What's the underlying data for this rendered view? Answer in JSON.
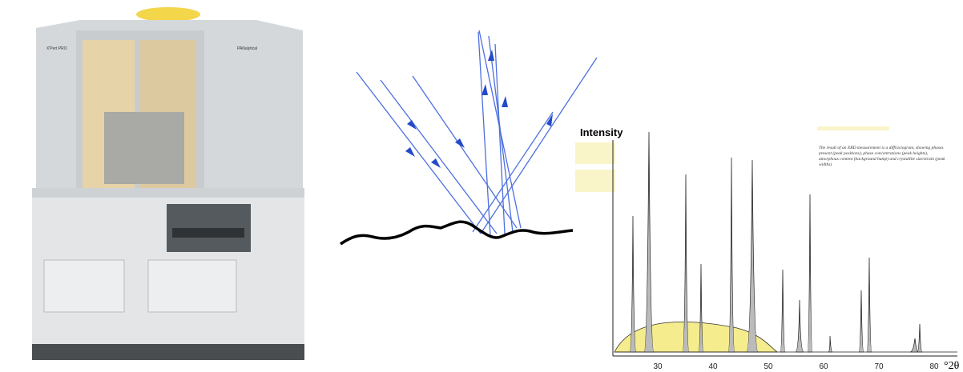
{
  "machine": {
    "brand": "X'Pert PRO",
    "maker": "PANalytical"
  },
  "diffractogram": {
    "y_label": "Intensity",
    "x_label": "°2θ",
    "x_ticks": [
      "30",
      "40",
      "50",
      "60",
      "70",
      "80"
    ],
    "caption": "The result of an XRD measurement is a diffractogram, showing phases present (peak positions), phase concentrations (peak heights), amorphous content (background hump) and crystallite size/strain (peak widths)"
  }
}
